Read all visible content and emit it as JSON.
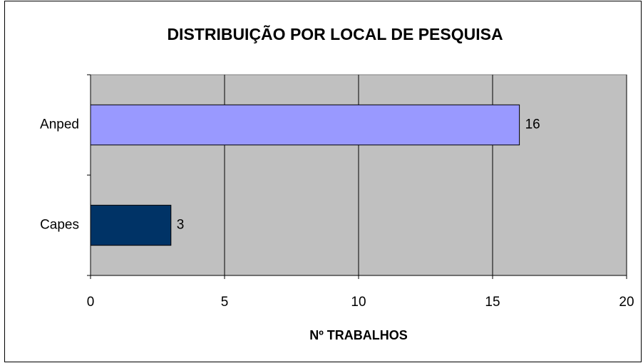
{
  "chart_data": {
    "type": "barh",
    "title": "DISTRIBUIÇÃO POR LOCAL DE PESQUISA",
    "x_label": "Nº TRABALHOS",
    "categories": [
      "Anped",
      "Capes"
    ],
    "values": [
      16,
      3
    ],
    "colors": [
      "#9999ff",
      "#003366"
    ],
    "xlim": [
      0,
      20
    ],
    "xticks": [
      0,
      5,
      10,
      15,
      20
    ],
    "grid": true
  }
}
